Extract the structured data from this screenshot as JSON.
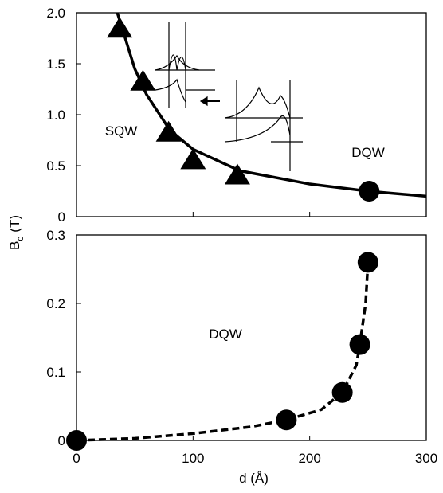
{
  "chart_data": [
    {
      "type": "line",
      "xlim": [
        0,
        300
      ],
      "xticks": [
        0,
        100,
        200,
        300
      ],
      "ylim": [
        0,
        2.0
      ],
      "yticks": [
        0,
        {
          "value": 0.5,
          "label": "0.5"
        },
        {
          "value": 1.0,
          "label": "1.0"
        },
        {
          "value": 1.5,
          "label": "1.5"
        },
        {
          "value": 2.0,
          "label": "2.0"
        }
      ],
      "annotations": [
        "SQW",
        "DQW"
      ],
      "series": [
        {
          "color": "#000000",
          "style": "solid",
          "x": [
            35,
            50,
            60,
            80,
            100,
            140,
            200,
            250,
            300
          ],
          "values": [
            2.0,
            1.45,
            1.2,
            0.85,
            0.66,
            0.45,
            0.32,
            0.25,
            0.2
          ]
        },
        {
          "color": "#000000",
          "marker": "triangle",
          "x": [
            37,
            57,
            79,
            100,
            138
          ],
          "values": [
            1.85,
            1.33,
            0.83,
            0.56,
            0.41
          ]
        },
        {
          "color": "#000000",
          "marker": "circle",
          "x": [
            251
          ],
          "values": [
            0.25
          ]
        }
      ]
    },
    {
      "type": "line",
      "xlim": [
        0,
        300
      ],
      "xticks": [
        0,
        100,
        200,
        300
      ],
      "ylim": [
        0,
        0.3
      ],
      "yticks": [
        0,
        0.1,
        0.2,
        0.3
      ],
      "x_label": "d (Å)",
      "y_label": {
        "main": "B",
        "sub": "c",
        "unit": "(T)"
      },
      "annotations": [
        "DQW"
      ],
      "series": [
        {
          "color": "#000000",
          "style": "dashed",
          "x": [
            0,
            50,
            100,
            150,
            180,
            210,
            228,
            240,
            243,
            248,
            250
          ],
          "values": [
            0,
            0.003,
            0.01,
            0.02,
            0.03,
            0.045,
            0.07,
            0.11,
            0.14,
            0.2,
            0.26
          ]
        },
        {
          "color": "#000000",
          "marker": "circle",
          "x": [
            0,
            180,
            228,
            243,
            250
          ],
          "values": [
            0,
            0.03,
            0.07,
            0.14,
            0.26
          ]
        }
      ]
    }
  ]
}
